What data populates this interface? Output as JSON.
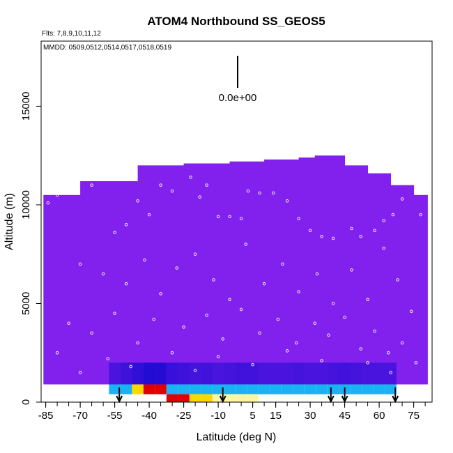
{
  "chart_data": {
    "type": "heatmap",
    "title": "ATOM4 Northbound SS_GEOS5",
    "flights_note": "Flts: 7,8,9,10,11,12",
    "dates_note": "MMDD: 0509,0512,0514,0517,0518,0519",
    "xlabel": "Latitude (deg N)",
    "ylabel": "Altitude (m)",
    "xlim": [
      -87,
      83
    ],
    "ylim": [
      0,
      18300
    ],
    "x_ticks": [
      -85,
      -70,
      -55,
      -40,
      -25,
      -10,
      5,
      15,
      30,
      45,
      60,
      75
    ],
    "x_ticks_minor_step": 5,
    "y_ticks": [
      0,
      5000,
      10000,
      15000
    ],
    "scale_value_label": "0.0e+00",
    "colors": {
      "background_field": "#8220ee",
      "dark_blue": "#1a0ad0",
      "light_blue": "#19b2f3",
      "yellow": "#ffd700",
      "red": "#e00000",
      "points": "#ffffff"
    },
    "field_envelope": [
      [
        -86,
        10500
      ],
      [
        -70,
        11200
      ],
      [
        -45,
        12000
      ],
      [
        -25,
        12100
      ],
      [
        -5,
        12200
      ],
      [
        10,
        12300
      ],
      [
        25,
        12400
      ],
      [
        32,
        12500
      ],
      [
        45,
        12000
      ],
      [
        55,
        11600
      ],
      [
        65,
        11000
      ],
      [
        75,
        10500
      ],
      [
        81,
        9500
      ]
    ],
    "near_surface_band": {
      "lat": [
        -55,
        -50,
        -45,
        -40,
        -35,
        -30,
        -25,
        -20,
        -15,
        -10,
        -5,
        0,
        5,
        10,
        15,
        20,
        25,
        30,
        35,
        40,
        45,
        50,
        55,
        60,
        65
      ],
      "intensity": [
        0.3,
        0.5,
        0.7,
        0.95,
        0.9,
        0.6,
        0.55,
        0.4,
        0.45,
        0.35,
        0.4,
        0.5,
        0.45,
        0.35,
        0.3,
        0.35,
        0.4,
        0.35,
        0.3,
        0.4,
        0.45,
        0.4,
        0.3,
        0.35,
        0.3
      ]
    },
    "surface_band_lower": {
      "lat": [
        -30,
        -25,
        -20,
        -15,
        -10,
        -5,
        0,
        5
      ],
      "intensity": [
        1.0,
        0.9,
        0.75,
        0.6,
        0.45,
        0.35,
        0.3,
        0.2
      ]
    },
    "arrows_lat": [
      -53,
      -8,
      39,
      45,
      67
    ],
    "sample_points": [
      [
        -84,
        10100
      ],
      [
        -80,
        10500
      ],
      [
        -75,
        10600
      ],
      [
        -65,
        11000
      ],
      [
        -55,
        8600
      ],
      [
        -50,
        9000
      ],
      [
        -45,
        10200
      ],
      [
        -40,
        9500
      ],
      [
        -35,
        11000
      ],
      [
        -30,
        10700
      ],
      [
        -22,
        11400
      ],
      [
        -18,
        10400
      ],
      [
        -15,
        11000
      ],
      [
        -10,
        9400
      ],
      [
        -5,
        9400
      ],
      [
        0,
        9300
      ],
      [
        3,
        10700
      ],
      [
        8,
        10600
      ],
      [
        14,
        10600
      ],
      [
        20,
        10200
      ],
      [
        25,
        9300
      ],
      [
        30,
        8700
      ],
      [
        35,
        8400
      ],
      [
        40,
        8300
      ],
      [
        48,
        8800
      ],
      [
        52,
        8400
      ],
      [
        58,
        8700
      ],
      [
        62,
        9200
      ],
      [
        66,
        9500
      ],
      [
        70,
        10300
      ],
      [
        75,
        11300
      ],
      [
        78,
        9500
      ],
      [
        -70,
        7000
      ],
      [
        -60,
        6500
      ],
      [
        -50,
        6000
      ],
      [
        -42,
        7200
      ],
      [
        -35,
        5500
      ],
      [
        -28,
        6800
      ],
      [
        -20,
        7500
      ],
      [
        -12,
        6200
      ],
      [
        -5,
        5200
      ],
      [
        2,
        8000
      ],
      [
        10,
        6000
      ],
      [
        18,
        7000
      ],
      [
        25,
        5600
      ],
      [
        33,
        6500
      ],
      [
        40,
        5000
      ],
      [
        48,
        6700
      ],
      [
        55,
        5200
      ],
      [
        62,
        7800
      ],
      [
        68,
        6200
      ],
      [
        74,
        4600
      ],
      [
        -75,
        4000
      ],
      [
        -65,
        3500
      ],
      [
        -55,
        4500
      ],
      [
        -45,
        3000
      ],
      [
        -38,
        4200
      ],
      [
        -25,
        3800
      ],
      [
        -15,
        4400
      ],
      [
        -8,
        3200
      ],
      [
        0,
        4700
      ],
      [
        8,
        3500
      ],
      [
        16,
        4200
      ],
      [
        24,
        3000
      ],
      [
        32,
        4000
      ],
      [
        38,
        3400
      ],
      [
        45,
        4300
      ],
      [
        52,
        2700
      ],
      [
        58,
        3600
      ],
      [
        64,
        2500
      ],
      [
        70,
        3000
      ],
      [
        76,
        2000
      ],
      [
        -80,
        2500
      ],
      [
        -70,
        1500
      ],
      [
        -58,
        2200
      ],
      [
        -48,
        1800
      ],
      [
        -30,
        2500
      ],
      [
        -20,
        1600
      ],
      [
        -10,
        2300
      ],
      [
        5,
        1900
      ],
      [
        20,
        2600
      ],
      [
        35,
        2100
      ],
      [
        55,
        2000
      ],
      [
        65,
        1500
      ]
    ]
  }
}
